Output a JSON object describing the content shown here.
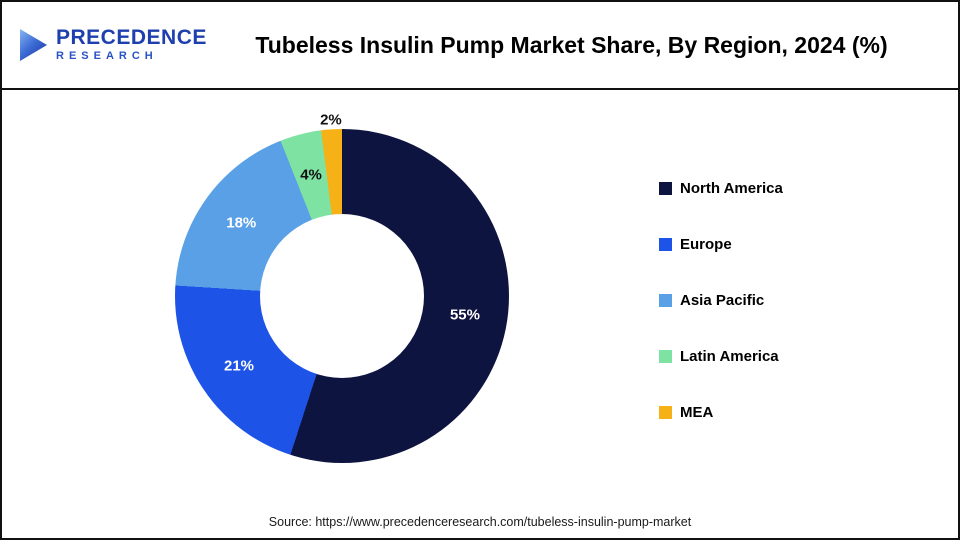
{
  "logo": {
    "line1": "PRECEDENCE",
    "line2": "RESEARCH"
  },
  "header": {
    "title": "Tubeless Insulin Pump Market Share, By Region, 2024 (%)"
  },
  "chart_data": {
    "type": "pie",
    "donut": true,
    "title": "Tubeless Insulin Pump Market Share, By Region, 2024 (%)",
    "categories": [
      "North America",
      "Europe",
      "Asia Pacific",
      "Latin America",
      "MEA"
    ],
    "values": [
      55,
      21,
      18,
      4,
      2
    ],
    "unit": "%",
    "colors": [
      "#0d1440",
      "#1d53e6",
      "#5aa0e6",
      "#7ee2a2",
      "#f6b117"
    ],
    "label_colors": [
      "#ffffff",
      "#ffffff",
      "#ffffff",
      "#111111",
      "#111111"
    ],
    "start_angle_deg": 0,
    "direction": "clockwise",
    "legend_position": "right"
  },
  "footer": {
    "source": "Source: https://www.precedenceresearch.com/tubeless-insulin-pump-market"
  }
}
